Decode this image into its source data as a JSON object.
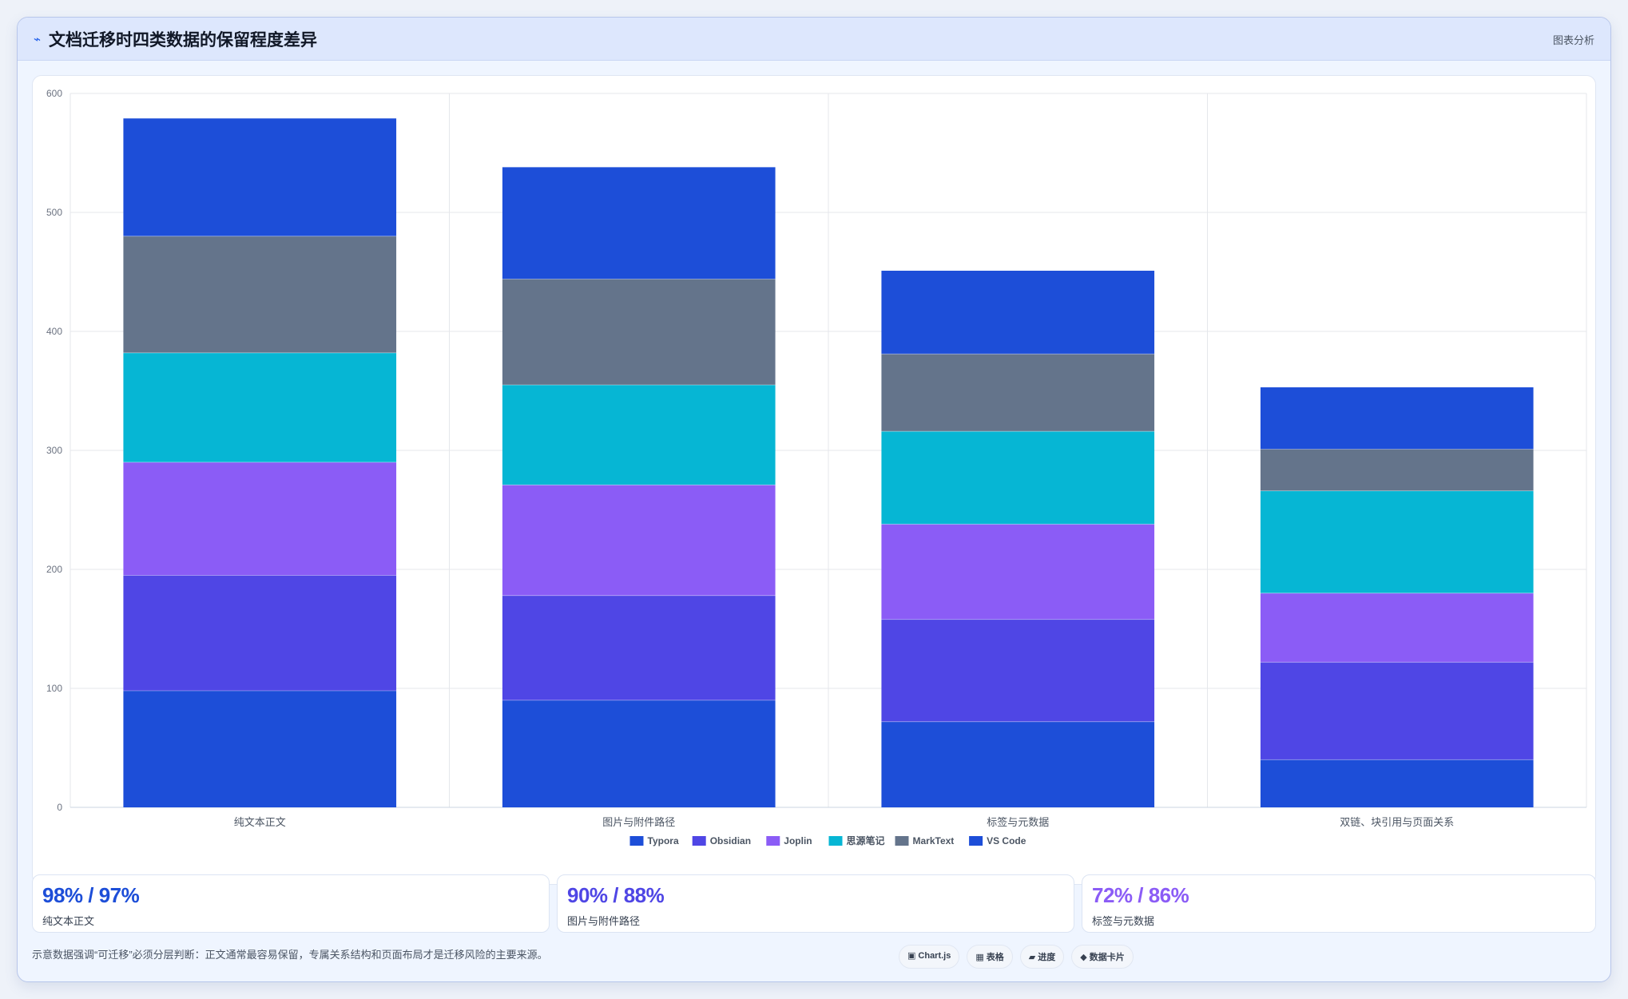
{
  "header": {
    "icon": "chart-line-icon",
    "title": "文档迁移时四类数据的保留程度差异",
    "tag": "图表分析"
  },
  "chart_data": {
    "type": "bar",
    "stacked": true,
    "categories": [
      "纯文本正文",
      "图片与附件路径",
      "标签与元数据",
      "双链、块引用与页面关系"
    ],
    "series": [
      {
        "name": "Typora",
        "color": "#1d4ed8",
        "values": [
          98,
          90,
          72,
          40
        ]
      },
      {
        "name": "Obsidian",
        "color": "#4f46e5",
        "values": [
          97,
          88,
          86,
          82
        ]
      },
      {
        "name": "Joplin",
        "color": "#8b5cf6",
        "values": [
          95,
          93,
          80,
          58
        ]
      },
      {
        "name": "思源笔记",
        "color": "#06b6d4",
        "values": [
          92,
          84,
          78,
          86
        ]
      },
      {
        "name": "MarkText",
        "color": "#64748b",
        "values": [
          98,
          89,
          65,
          35
        ]
      },
      {
        "name": "VS Code",
        "color": "#1d4ed8",
        "values": [
          99,
          94,
          70,
          52
        ]
      }
    ],
    "ylim": [
      0,
      600
    ],
    "yticks": [
      0,
      100,
      200,
      300,
      400,
      500,
      600
    ],
    "grid": true,
    "legend_position": "bottom"
  },
  "kpis": [
    {
      "value": "98% / 97%",
      "label": "纯文本正文",
      "color": "#1d4ed8"
    },
    {
      "value": "90% / 88%",
      "label": "图片与附件路径",
      "color": "#4f46e5"
    },
    {
      "value": "72% / 86%",
      "label": "标签与元数据",
      "color": "#8b5cf6"
    }
  ],
  "footer": {
    "note": "示意数据强调“可迁移”必须分层判断：正文通常最容易保留，专属关系结构和页面布局才是迁移风险的主要来源。",
    "chips": [
      {
        "glyph": "▣",
        "icon": "chart-icon",
        "label": "Chart.js"
      },
      {
        "glyph": "▦",
        "icon": "table-icon",
        "label": "表格"
      },
      {
        "glyph": "▰",
        "icon": "progress-icon",
        "label": "进度"
      },
      {
        "glyph": "◆",
        "icon": "data-card-icon",
        "label": "数据卡片"
      }
    ]
  }
}
